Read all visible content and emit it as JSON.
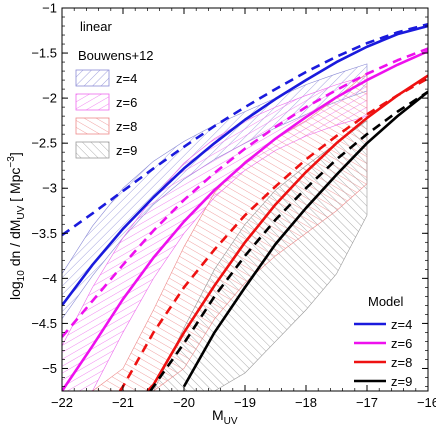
{
  "chart_data": {
    "type": "line",
    "xlabel": "M",
    "xlabel_sub": "UV",
    "ylabel_parts": [
      "log",
      "10",
      " dn / dM",
      "UV",
      " [ Mpc",
      "−3",
      "]"
    ],
    "xlim": [
      -22,
      -16
    ],
    "ylim": [
      -5.25,
      -1
    ],
    "x_ticks": [
      -22,
      -21,
      -20,
      -19,
      -18,
      -17,
      -16
    ],
    "x_tick_labels": [
      "−22",
      "−21",
      "−20",
      "−19",
      "−18",
      "−17",
      "−16"
    ],
    "y_ticks": [
      -1,
      -1.5,
      -2,
      -2.5,
      -3,
      -3.5,
      -4,
      -4.5,
      -5
    ],
    "y_tick_labels": [
      "−1",
      "−1.5",
      "−2",
      "−2.5",
      "−3",
      "−3.5",
      "−4",
      "−4.5",
      "−5"
    ],
    "grid": false,
    "annotation": "linear",
    "hatch_legend_title": "Bouwens+12",
    "line_legend_title": "Model",
    "colors": {
      "z4": "#1a1add",
      "z6": "#ee10ee",
      "z8": "#ee1111",
      "z9": "#000000"
    },
    "hatch_colors": {
      "z4": "#8a8ad6",
      "z6": "#ee6aee",
      "z8": "#ee8a8a",
      "z9": "#999999"
    },
    "observation_bands": [
      {
        "name": "z=4",
        "color_key": "z4",
        "x": [
          -22,
          -21.5,
          -21,
          -20.5,
          -20,
          -19.5,
          -19,
          -18.5,
          -18,
          -17.5,
          -17
        ],
        "upper": [
          -3.95,
          -3.42,
          -3.0,
          -2.7,
          -2.48,
          -2.3,
          -2.15,
          -2.0,
          -1.85,
          -1.73,
          -1.62
        ],
        "lower": [
          -4.45,
          -3.97,
          -3.55,
          -3.18,
          -2.9,
          -2.68,
          -2.5,
          -2.33,
          -2.18,
          -2.04,
          -1.92
        ]
      },
      {
        "name": "z=6",
        "color_key": "z6",
        "x": [
          -22,
          -21.5,
          -21,
          -20.5,
          -20,
          -19.5,
          -19,
          -18.5,
          -18,
          -17.5,
          -17
        ],
        "upper": [
          -4.75,
          -4.1,
          -3.55,
          -3.1,
          -2.72,
          -2.45,
          -2.25,
          -2.1,
          -1.97,
          -1.85,
          -1.75
        ],
        "lower": [
          -5.25,
          -5.25,
          -4.6,
          -4.0,
          -3.5,
          -3.1,
          -2.8,
          -2.58,
          -2.42,
          -2.3,
          -2.2
        ]
      },
      {
        "name": "z=8",
        "color_key": "z8",
        "x": [
          -22,
          -21.5,
          -21,
          -20.5,
          -20,
          -19.5,
          -19,
          -18.5,
          -18,
          -17.5,
          -17
        ],
        "upper": [
          -5.25,
          -5.25,
          -5.0,
          -4.35,
          -3.65,
          -3.05,
          -2.7,
          -2.45,
          -2.25,
          -2.0,
          -1.72
        ],
        "lower": [
          -5.25,
          -5.25,
          -5.25,
          -5.25,
          -5.0,
          -4.45,
          -4.05,
          -3.75,
          -3.5,
          -3.25,
          -2.95
        ]
      },
      {
        "name": "z=9",
        "color_key": "z9",
        "x": [
          -20.5,
          -20,
          -19.5,
          -19,
          -18.5,
          -18,
          -17.5,
          -17
        ],
        "upper": [
          -5.25,
          -4.55,
          -3.9,
          -3.4,
          -3.02,
          -2.75,
          -2.5,
          -2.25
        ],
        "lower": [
          -5.25,
          -5.25,
          -5.25,
          -5.05,
          -4.7,
          -4.35,
          -3.95,
          -3.3
        ]
      }
    ],
    "series": [
      {
        "name": "z=4",
        "color_key": "z4",
        "style": "solid",
        "x": [
          -22,
          -21.5,
          -21,
          -20.5,
          -20,
          -19.5,
          -19,
          -18.5,
          -18,
          -17.5,
          -17,
          -16.5,
          -16
        ],
        "y": [
          -4.3,
          -3.85,
          -3.45,
          -3.1,
          -2.78,
          -2.5,
          -2.24,
          -2.01,
          -1.8,
          -1.6,
          -1.43,
          -1.29,
          -1.2
        ]
      },
      {
        "name": "z=4 (dashed)",
        "color_key": "z4",
        "style": "dashed",
        "x": [
          -22,
          -21.5,
          -21,
          -20.5,
          -20,
          -19.5,
          -19,
          -18.5,
          -18,
          -17.5,
          -17,
          -16.5,
          -16
        ],
        "y": [
          -3.52,
          -3.28,
          -3.03,
          -2.78,
          -2.54,
          -2.31,
          -2.1,
          -1.9,
          -1.71,
          -1.54,
          -1.39,
          -1.27,
          -1.18
        ]
      },
      {
        "name": "z=6",
        "color_key": "z6",
        "style": "solid",
        "x": [
          -22,
          -21.5,
          -21,
          -20.5,
          -20,
          -19.5,
          -19,
          -18.5,
          -18,
          -17.5,
          -17,
          -16.5,
          -16
        ],
        "y": [
          -5.25,
          -4.75,
          -4.23,
          -3.77,
          -3.37,
          -3.02,
          -2.72,
          -2.45,
          -2.21,
          -1.99,
          -1.8,
          -1.63,
          -1.48
        ]
      },
      {
        "name": "z=6 (dashed)",
        "color_key": "z6",
        "style": "dashed",
        "x": [
          -22,
          -21.5,
          -21,
          -20.5,
          -20,
          -19.5,
          -19,
          -18.5,
          -18,
          -17.5,
          -17,
          -16.5,
          -16
        ],
        "y": [
          -4.65,
          -4.25,
          -3.85,
          -3.47,
          -3.13,
          -2.83,
          -2.56,
          -2.32,
          -2.1,
          -1.91,
          -1.73,
          -1.58,
          -1.45
        ]
      },
      {
        "name": "z=8",
        "color_key": "z8",
        "style": "solid",
        "x": [
          -20.6,
          -20.5,
          -20,
          -19.5,
          -19,
          -18.5,
          -18,
          -17.5,
          -17,
          -16.5,
          -16
        ],
        "y": [
          -5.25,
          -5.18,
          -4.6,
          -4.08,
          -3.6,
          -3.18,
          -2.82,
          -2.5,
          -2.22,
          -1.97,
          -1.75
        ]
      },
      {
        "name": "z=8 (dashed)",
        "color_key": "z8",
        "style": "dashed",
        "x": [
          -21.05,
          -21,
          -20.5,
          -20,
          -19.5,
          -19,
          -18.5,
          -18,
          -17.5,
          -17,
          -16.5,
          -16
        ],
        "y": [
          -5.25,
          -5.2,
          -4.6,
          -4.1,
          -3.68,
          -3.3,
          -2.98,
          -2.68,
          -2.42,
          -2.18,
          -1.97,
          -1.78
        ]
      },
      {
        "name": "z=9",
        "color_key": "z9",
        "style": "solid",
        "x": [
          -20.0,
          -19.5,
          -19,
          -18.5,
          -18,
          -17.5,
          -17,
          -16.5,
          -16
        ],
        "y": [
          -5.2,
          -4.6,
          -4.1,
          -3.62,
          -3.22,
          -2.85,
          -2.5,
          -2.2,
          -1.93
        ]
      },
      {
        "name": "z=9 (dashed)",
        "color_key": "z9",
        "style": "dashed",
        "x": [
          -20.55,
          -20.5,
          -20,
          -19.5,
          -19,
          -18.5,
          -18,
          -17.5,
          -17,
          -16.5,
          -16
        ],
        "y": [
          -5.25,
          -5.2,
          -4.72,
          -4.2,
          -3.75,
          -3.35,
          -3.0,
          -2.68,
          -2.4,
          -2.15,
          -1.93
        ]
      }
    ],
    "hatch_legend": [
      {
        "label": "z=4",
        "color_key": "z4"
      },
      {
        "label": "z=6",
        "color_key": "z6"
      },
      {
        "label": "z=8",
        "color_key": "z8"
      },
      {
        "label": "z=9",
        "color_key": "z9"
      }
    ],
    "line_legend": [
      {
        "label": "z=4",
        "color_key": "z4"
      },
      {
        "label": "z=6",
        "color_key": "z6"
      },
      {
        "label": "z=8",
        "color_key": "z8"
      },
      {
        "label": "z=9",
        "color_key": "z9"
      }
    ]
  }
}
